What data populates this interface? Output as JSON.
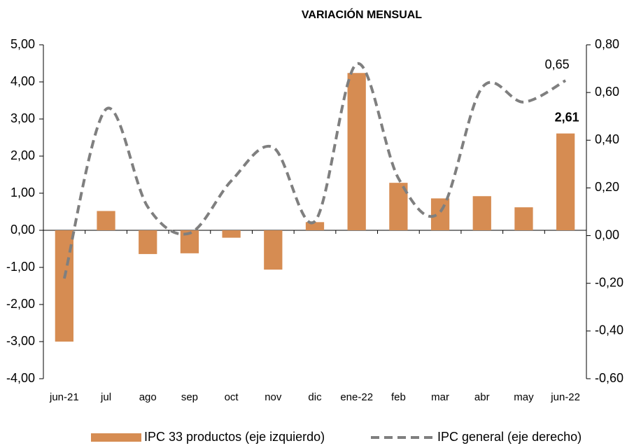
{
  "chart_data": {
    "type": "bar-line",
    "title": "VARIACIÓN MENSUAL",
    "categories": [
      "jun-21",
      "jul",
      "ago",
      "sep",
      "oct",
      "nov",
      "dic",
      "ene-22",
      "feb",
      "mar",
      "abr",
      "may",
      "jun-22"
    ],
    "series": [
      {
        "name": "IPC 33 productos (eje izquierdo)",
        "type": "bar",
        "color": "#d68c52",
        "values": [
          -3.0,
          0.52,
          -0.64,
          -0.62,
          -0.2,
          -1.06,
          0.22,
          4.24,
          1.28,
          0.86,
          0.92,
          0.62,
          2.61
        ],
        "value_labels": [
          null,
          null,
          null,
          null,
          null,
          null,
          null,
          null,
          null,
          null,
          null,
          null,
          "2,61"
        ]
      },
      {
        "name": "IPC general (eje derecho)",
        "type": "line",
        "axis": "y2",
        "color": "#7f7f7f",
        "dashed": true,
        "values": [
          -0.18,
          0.53,
          0.12,
          0.01,
          0.23,
          0.37,
          0.06,
          0.72,
          0.24,
          0.1,
          0.62,
          0.56,
          0.65
        ],
        "value_labels": [
          null,
          null,
          null,
          null,
          null,
          null,
          null,
          null,
          null,
          null,
          null,
          null,
          "0,65"
        ]
      }
    ],
    "ylim": [
      -4,
      5
    ],
    "yticks": [
      {
        "value": -4,
        "label": "-4,00"
      },
      {
        "value": -3,
        "label": "-3,00"
      },
      {
        "value": -2,
        "label": "-2,00"
      },
      {
        "value": -1,
        "label": "-1,00"
      },
      {
        "value": 0,
        "label": "0,00"
      },
      {
        "value": 1,
        "label": "1,00"
      },
      {
        "value": 2,
        "label": "2,00"
      },
      {
        "value": 3,
        "label": "3,00"
      },
      {
        "value": 4,
        "label": "4,00"
      },
      {
        "value": 5,
        "label": "5,00"
      }
    ],
    "y2lim": [
      -0.6,
      0.8
    ],
    "y2ticks": [
      {
        "value": -0.6,
        "label": "-0,60"
      },
      {
        "value": -0.4,
        "label": "-0,40"
      },
      {
        "value": -0.2,
        "label": "-0,20"
      },
      {
        "value": 0,
        "label": "0,00"
      },
      {
        "value": 0.2,
        "label": "0,20"
      },
      {
        "value": 0.4,
        "label": "0,40"
      },
      {
        "value": 0.6,
        "label": "0,60"
      },
      {
        "value": 0.8,
        "label": "0,80"
      }
    ],
    "grid": false,
    "legend": "bottom"
  }
}
